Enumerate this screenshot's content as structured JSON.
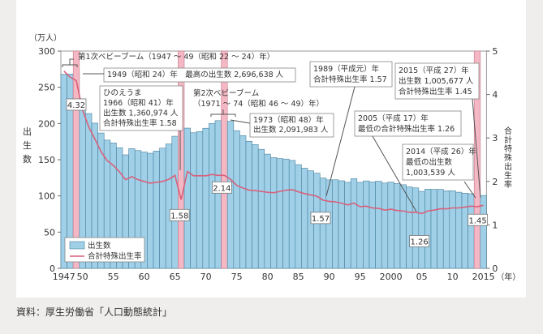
{
  "chart_data": {
    "type": "bar+line",
    "left_axis": {
      "unit": "（万人）",
      "label": "出生数",
      "range": [
        0,
        300
      ],
      "ticks": [
        0,
        50,
        100,
        150,
        200,
        250,
        300
      ]
    },
    "right_axis": {
      "label": "合計特殊出生率",
      "range": [
        0,
        5
      ],
      "ticks": [
        0,
        1,
        2,
        3,
        4,
        5
      ]
    },
    "x_unit": "（年）",
    "x_tick_labels": [
      {
        "year": 1947,
        "label": "1947"
      },
      {
        "year": 1950,
        "label": "50"
      },
      {
        "year": 1955,
        "label": "55"
      },
      {
        "year": 1960,
        "label": "60"
      },
      {
        "year": 1965,
        "label": "65"
      },
      {
        "year": 1970,
        "label": "70"
      },
      {
        "year": 1975,
        "label": "75"
      },
      {
        "year": 1980,
        "label": "80"
      },
      {
        "year": 1985,
        "label": "85"
      },
      {
        "year": 1990,
        "label": "90"
      },
      {
        "year": 1995,
        "label": "95"
      },
      {
        "year": 2000,
        "label": "2000"
      },
      {
        "year": 2005,
        "label": "05"
      },
      {
        "year": 2010,
        "label": "10"
      },
      {
        "year": 2015,
        "label": "2015"
      }
    ],
    "x": [
      1947,
      1948,
      1949,
      1950,
      1951,
      1952,
      1953,
      1954,
      1955,
      1956,
      1957,
      1958,
      1959,
      1960,
      1961,
      1962,
      1963,
      1964,
      1965,
      1966,
      1967,
      1968,
      1969,
      1970,
      1971,
      1972,
      1973,
      1974,
      1975,
      1976,
      1977,
      1978,
      1979,
      1980,
      1981,
      1982,
      1983,
      1984,
      1985,
      1986,
      1987,
      1988,
      1989,
      1990,
      1991,
      1992,
      1993,
      1994,
      1995,
      1996,
      1997,
      1998,
      1999,
      2000,
      2001,
      2002,
      2003,
      2004,
      2005,
      2006,
      2007,
      2008,
      2009,
      2010,
      2011,
      2012,
      2013,
      2014,
      2015
    ],
    "series": [
      {
        "name": "出生数",
        "type": "bar",
        "axis": "left",
        "color": "#9fd0e8",
        "values": [
          267.9,
          268.2,
          269.7,
          233.8,
          213.8,
          200.5,
          186.8,
          177.0,
          173.1,
          166.5,
          156.7,
          165.3,
          162.6,
          160.6,
          158.9,
          161.9,
          166.0,
          171.7,
          182.4,
          136.1,
          193.6,
          187.2,
          188.9,
          193.4,
          200.1,
          203.9,
          209.2,
          203.0,
          190.1,
          183.3,
          175.5,
          170.9,
          164.3,
          157.7,
          152.9,
          151.5,
          150.9,
          149.0,
          143.2,
          138.3,
          134.7,
          131.4,
          124.7,
          122.2,
          122.3,
          120.9,
          118.8,
          123.8,
          118.7,
          120.7,
          119.2,
          120.3,
          117.8,
          119.1,
          117.1,
          115.4,
          112.4,
          111.1,
          106.3,
          109.3,
          109.0,
          109.1,
          107.0,
          107.1,
          105.1,
          103.7,
          103.0,
          100.4,
          100.6
        ]
      },
      {
        "name": "合計特殊出生率",
        "type": "line",
        "axis": "right",
        "color": "#d9607a",
        "values": [
          4.54,
          4.4,
          4.32,
          3.65,
          3.26,
          2.98,
          2.69,
          2.48,
          2.37,
          2.22,
          2.04,
          2.11,
          2.04,
          2.0,
          1.96,
          1.98,
          2.0,
          2.05,
          2.14,
          1.58,
          2.23,
          2.13,
          2.13,
          2.13,
          2.16,
          2.14,
          2.14,
          2.05,
          1.91,
          1.85,
          1.8,
          1.79,
          1.77,
          1.75,
          1.74,
          1.77,
          1.8,
          1.81,
          1.76,
          1.72,
          1.69,
          1.66,
          1.57,
          1.54,
          1.53,
          1.5,
          1.46,
          1.5,
          1.42,
          1.43,
          1.39,
          1.38,
          1.34,
          1.36,
          1.33,
          1.32,
          1.29,
          1.29,
          1.26,
          1.32,
          1.34,
          1.37,
          1.37,
          1.39,
          1.39,
          1.41,
          1.43,
          1.42,
          1.45
        ]
      }
    ],
    "highlighted_years": [
      1949,
      1966,
      1973,
      2014
    ],
    "highlight_color": "#f4b8c4",
    "value_labels": [
      {
        "year": 1949,
        "text": "4.32"
      },
      {
        "year": 1966,
        "text": "1.58"
      },
      {
        "year": 1973,
        "text": "2.14"
      },
      {
        "year": 1989,
        "text": "1.57"
      },
      {
        "year": 2005,
        "text": "1.26"
      },
      {
        "year": 2015,
        "text": "1.45"
      }
    ],
    "annotations": {
      "boom1": "第1次ベビーブーム（1947 ～ 49（昭和 22 ～ 24）年）",
      "max1949": "1949（昭和 24）年　最高の出生数 2,696,638 人",
      "hinoe": [
        "ひのえうま",
        "1966（昭和 41）年",
        "出生数 1,360,974 人",
        "合計特殊出生率 1.58"
      ],
      "boom2": [
        "第2次ベビーブーム",
        "（1971 ～ 74（昭和 46 ～ 49）年）"
      ],
      "y1973": [
        "1973（昭和 48）年",
        "出生数 2,091,983 人"
      ],
      "y1989": [
        "1989（平成元）年",
        "合計特殊出生率 1.57"
      ],
      "y2015": [
        "2015（平成 27）年",
        "出生数 1,005,677 人",
        "合計特殊出生率 1.45"
      ],
      "y2005": [
        "2005（平成 17）年",
        "最低の合計特殊出生率 1.26"
      ],
      "y2014": [
        "2014（平成 26）年",
        "最低の出生数",
        "1,003,539 人"
      ]
    },
    "legend": {
      "placement": "bottom-left",
      "items": [
        "出生数",
        "合計特殊出生率"
      ]
    }
  },
  "source": "資料：厚生労働省「人口動態統計」"
}
